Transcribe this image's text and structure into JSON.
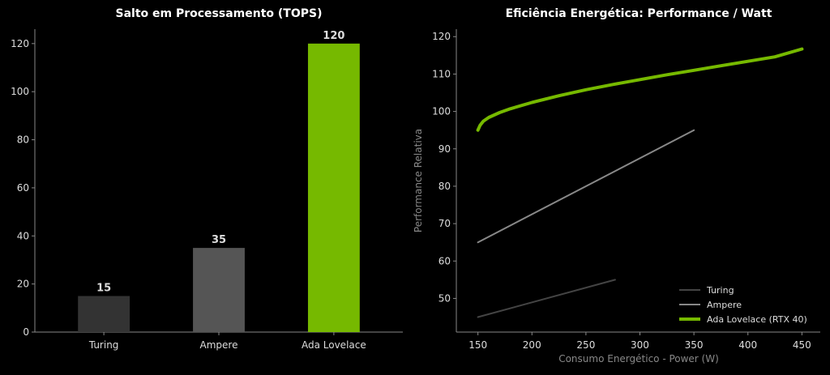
{
  "chart_data": [
    {
      "type": "bar",
      "title": "Salto em Processamento (TOPS)",
      "xlabel": "",
      "ylabel": "",
      "categories": [
        "Turing",
        "Ampere",
        "Ada Lovelace"
      ],
      "values": [
        15,
        35,
        120
      ],
      "data_labels": [
        "15",
        "35",
        "120"
      ],
      "colors": [
        "#333333",
        "#555555",
        "#76b900"
      ],
      "ylim": [
        0,
        126
      ],
      "yticks": [
        0,
        20,
        40,
        60,
        80,
        100,
        120
      ],
      "grid": false
    },
    {
      "type": "line",
      "title": "Eficiência Energética: Performance / Watt",
      "xlabel": "Consumo Energético - Power (W)",
      "ylabel": "Performance Relativa",
      "xlim": [
        130,
        467
      ],
      "ylim": [
        41,
        122
      ],
      "xticks": [
        150,
        200,
        250,
        300,
        350,
        400,
        450
      ],
      "yticks": [
        50,
        60,
        70,
        80,
        90,
        100,
        110,
        120
      ],
      "grid": false,
      "legend_position": "bottom-right",
      "series": [
        {
          "name": "Turing",
          "color": "#444444",
          "x": [
            150,
            277
          ],
          "y": [
            45,
            55
          ]
        },
        {
          "name": "Ampere",
          "color": "#888888",
          "x": [
            150,
            350
          ],
          "y": [
            65,
            95
          ]
        },
        {
          "name": "Ada Lovelace (RTX 40)",
          "color": "#76b900",
          "x": [
            150,
            152,
            155,
            160,
            170,
            180,
            200,
            225,
            250,
            275,
            300,
            325,
            350,
            375,
            400,
            425,
            450
          ],
          "y": [
            95,
            96.3,
            97.4,
            98.4,
            99.7,
            100.7,
            102.4,
            104.2,
            105.8,
            107.2,
            108.5,
            109.8,
            111.0,
            112.2,
            113.4,
            114.6,
            116.7
          ]
        }
      ]
    }
  ]
}
